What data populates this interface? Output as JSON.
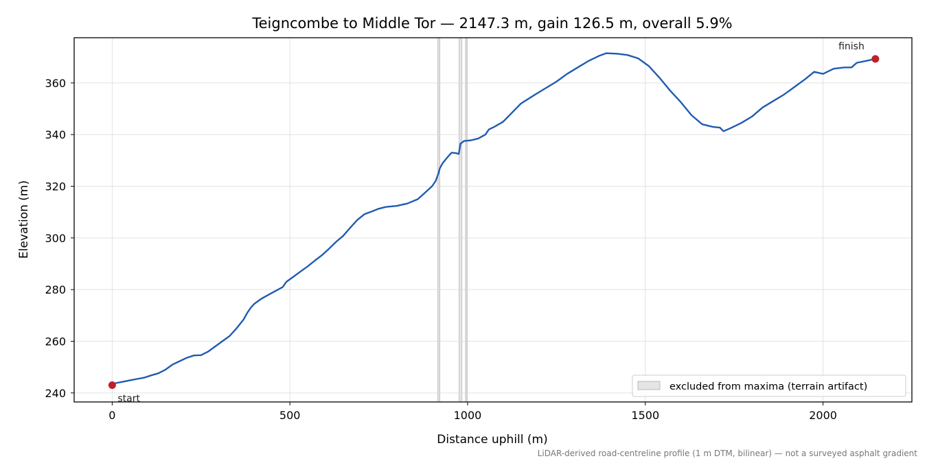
{
  "chart_data": {
    "type": "line",
    "title": "Teigncombe to Middle Tor — 2147.3 m, gain 126.5 m, overall 5.9%",
    "xlabel": "Distance uphill (m)",
    "ylabel": "Elevation (m)",
    "xlim": [
      -107,
      2250
    ],
    "ylim": [
      236.5,
      377.5
    ],
    "xticks": [
      0,
      500,
      1000,
      1500,
      2000
    ],
    "yticks": [
      240,
      260,
      280,
      300,
      320,
      340,
      360
    ],
    "grid": true,
    "legend_position": "lower-right",
    "legend": [
      {
        "label": "excluded from maxima (terrain artifact)",
        "swatch": "#e5e5e5"
      }
    ],
    "excluded_ranges": [
      [
        916,
        922
      ],
      [
        976,
        984
      ],
      [
        994,
        998
      ]
    ],
    "series": [
      {
        "color": "#1f5bb0",
        "points": [
          [
            0,
            243.0
          ],
          [
            10,
            243.8
          ],
          [
            30,
            244.3
          ],
          [
            50,
            244.9
          ],
          [
            70,
            245.4
          ],
          [
            90,
            245.9
          ],
          [
            110,
            246.8
          ],
          [
            130,
            247.6
          ],
          [
            150,
            249.0
          ],
          [
            170,
            251.0
          ],
          [
            190,
            252.3
          ],
          [
            210,
            253.6
          ],
          [
            230,
            254.5
          ],
          [
            250,
            254.6
          ],
          [
            270,
            256.0
          ],
          [
            290,
            258.0
          ],
          [
            310,
            260.0
          ],
          [
            330,
            262.0
          ],
          [
            350,
            265.0
          ],
          [
            370,
            268.5
          ],
          [
            380,
            271.0
          ],
          [
            390,
            273.0
          ],
          [
            400,
            274.5
          ],
          [
            420,
            276.5
          ],
          [
            440,
            278.0
          ],
          [
            460,
            279.5
          ],
          [
            480,
            281.0
          ],
          [
            490,
            283.0
          ],
          [
            510,
            285.0
          ],
          [
            530,
            287.0
          ],
          [
            550,
            289.0
          ],
          [
            570,
            291.2
          ],
          [
            590,
            293.3
          ],
          [
            610,
            295.8
          ],
          [
            630,
            298.5
          ],
          [
            650,
            300.8
          ],
          [
            670,
            304.0
          ],
          [
            690,
            307.0
          ],
          [
            710,
            309.2
          ],
          [
            730,
            310.2
          ],
          [
            750,
            311.3
          ],
          [
            770,
            312.0
          ],
          [
            800,
            312.4
          ],
          [
            830,
            313.3
          ],
          [
            860,
            315.0
          ],
          [
            880,
            317.5
          ],
          [
            900,
            320.0
          ],
          [
            910,
            322.0
          ],
          [
            918,
            325.0
          ],
          [
            922,
            327.0
          ],
          [
            930,
            329.0
          ],
          [
            945,
            331.5
          ],
          [
            955,
            333.0
          ],
          [
            968,
            332.8
          ],
          [
            975,
            332.5
          ],
          [
            980,
            336.5
          ],
          [
            990,
            337.5
          ],
          [
            1010,
            337.8
          ],
          [
            1030,
            338.5
          ],
          [
            1050,
            340.0
          ],
          [
            1060,
            342.0
          ],
          [
            1075,
            343.0
          ],
          [
            1100,
            345.0
          ],
          [
            1125,
            348.5
          ],
          [
            1150,
            352.0
          ],
          [
            1190,
            355.5
          ],
          [
            1220,
            358.0
          ],
          [
            1250,
            360.5
          ],
          [
            1280,
            363.5
          ],
          [
            1310,
            366.0
          ],
          [
            1340,
            368.5
          ],
          [
            1370,
            370.5
          ],
          [
            1390,
            371.5
          ],
          [
            1420,
            371.3
          ],
          [
            1450,
            370.8
          ],
          [
            1480,
            369.5
          ],
          [
            1510,
            366.5
          ],
          [
            1540,
            362.0
          ],
          [
            1570,
            357.0
          ],
          [
            1600,
            352.5
          ],
          [
            1630,
            347.5
          ],
          [
            1660,
            344.0
          ],
          [
            1690,
            343.0
          ],
          [
            1710,
            342.7
          ],
          [
            1720,
            341.3
          ],
          [
            1740,
            342.5
          ],
          [
            1770,
            344.5
          ],
          [
            1800,
            347.0
          ],
          [
            1830,
            350.5
          ],
          [
            1860,
            353.0
          ],
          [
            1890,
            355.5
          ],
          [
            1920,
            358.5
          ],
          [
            1950,
            361.5
          ],
          [
            1975,
            364.3
          ],
          [
            2000,
            363.5
          ],
          [
            2030,
            365.5
          ],
          [
            2060,
            366.0
          ],
          [
            2080,
            366.0
          ],
          [
            2095,
            367.8
          ],
          [
            2120,
            368.5
          ],
          [
            2147.3,
            369.3
          ]
        ]
      }
    ],
    "markers": [
      {
        "x": 0,
        "y": 243.0,
        "label": "start",
        "color": "#c0202a"
      },
      {
        "x": 2147.3,
        "y": 369.3,
        "label": "finish",
        "color": "#c0202a"
      }
    ],
    "footnote": "LiDAR-derived road-centreline profile (1 m DTM, bilinear) — not a surveyed asphalt gradient"
  }
}
